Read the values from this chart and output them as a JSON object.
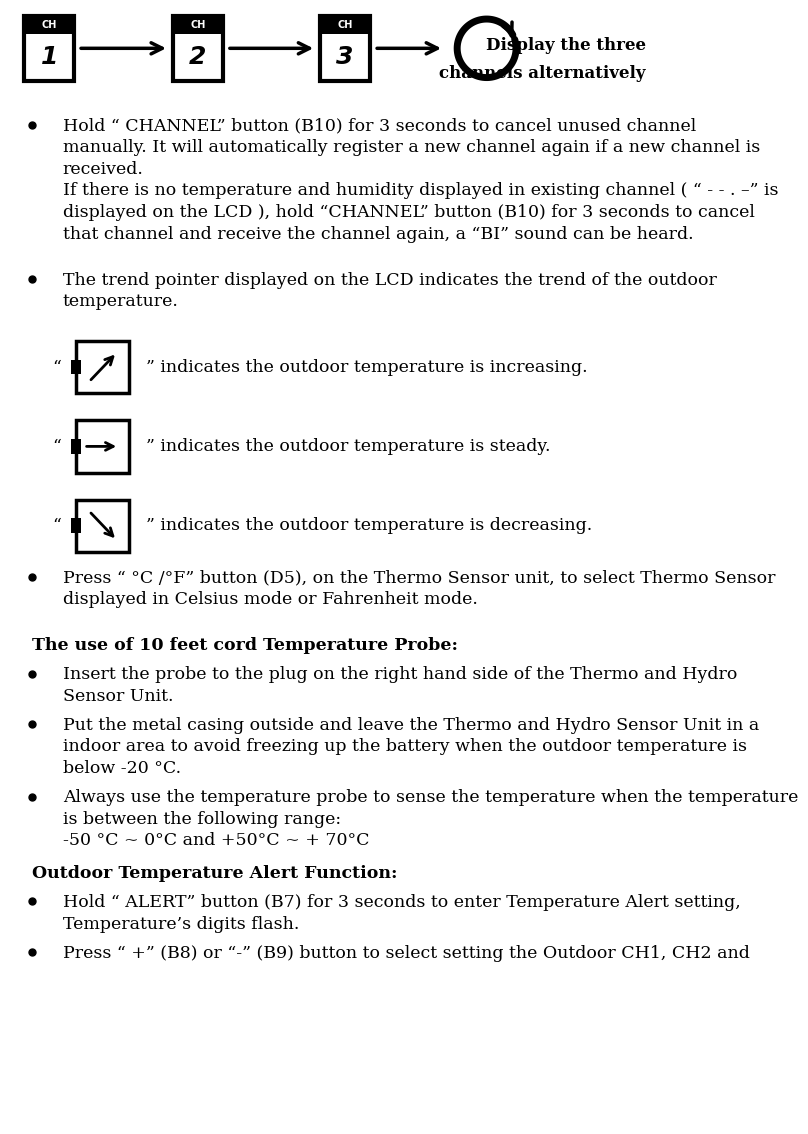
{
  "bg_color": "#ffffff",
  "text_color": "#000000",
  "header_caption_line1": "Display the three",
  "header_caption_line2": "channels alternatively",
  "bullet1_lines": [
    "Hold “ CHANNEL” button (B10) for 3 seconds to cancel unused channel",
    "manually. It will automatically register a new channel again if a new channel is",
    "received.",
    "If there is no temperature and humidity displayed in existing channel ( “ - - . –” is",
    "displayed on the LCD ), hold “CHANNEL” button (B10) for 3 seconds to cancel",
    "that channel and receive the channel again, a “BI” sound can be heard."
  ],
  "bullet2_lines": [
    "The trend pointer displayed on the LCD indicates the trend of the outdoor",
    "temperature."
  ],
  "trend_texts": [
    "” indicates the outdoor temperature is increasing.",
    "” indicates the outdoor temperature is steady.",
    "” indicates the outdoor temperature is decreasing."
  ],
  "bullet3_lines": [
    "Press “ °C /°F” button (D5), on the Thermo Sensor unit, to select Thermo Sensor",
    "displayed in Celsius mode or Fahrenheit mode."
  ],
  "heading_probe": "The use of 10 feet cord Temperature Probe:",
  "probe_bullets": [
    [
      "Insert the probe to the plug on the right hand side of the Thermo and Hydro",
      "Sensor Unit."
    ],
    [
      "Put the metal casing outside and leave the Thermo and Hydro Sensor Unit in a",
      "indoor area to avoid freezing up the battery when the outdoor temperature is",
      "below -20 °C."
    ],
    [
      "Always use the temperature probe to sense the temperature when the temperature",
      "is between the following range:",
      "-50 °C ~ 0°C and +50°C ~ + 70°C"
    ]
  ],
  "heading_alert": "Outdoor Temperature Alert Function:",
  "alert_bullets": [
    [
      "Hold “ ALERT” button (B7) for 3 seconds to enter Temperature Alert setting,",
      "Temperature’s digits flash."
    ],
    [
      "Press “ +” (B8) or “-” (B9) button to select setting the Outdoor CH1, CH2 and"
    ]
  ]
}
